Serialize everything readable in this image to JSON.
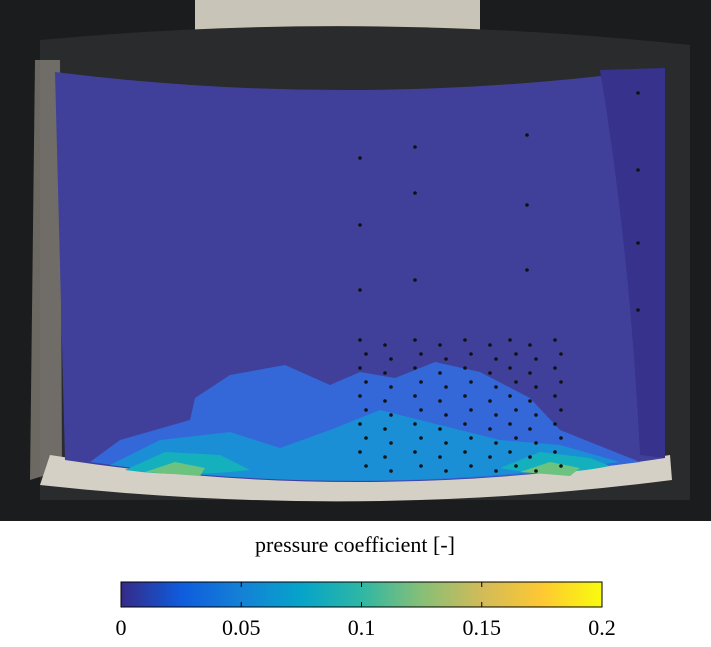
{
  "chart_data": {
    "type": "colorbar",
    "colorbar_label": "pressure coefficient [-]",
    "clim": [
      0,
      0.2
    ],
    "ticks": [
      0,
      0.05,
      0.1,
      0.15,
      0.2
    ],
    "colormap": [
      "#352a87",
      "#0f5cdd",
      "#1481d6",
      "#06a4ca",
      "#2eb7a4",
      "#87bf77",
      "#d1bb59",
      "#fec832",
      "#f9fb0e"
    ]
  }
}
